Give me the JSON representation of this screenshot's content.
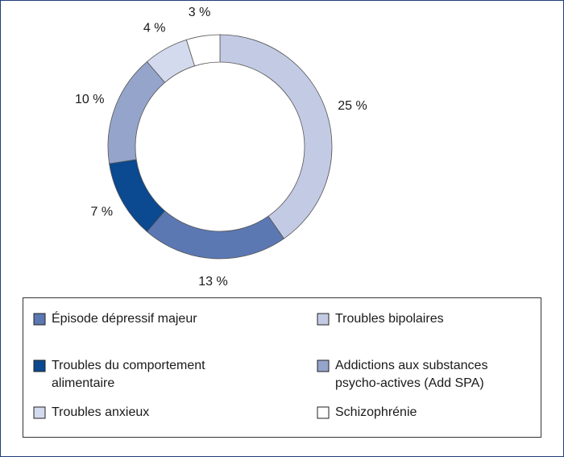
{
  "chart_data": {
    "type": "donut",
    "categories": [
      "Épisode dépressif majeur",
      "Troubles bipolaires",
      "Troubles du comportement alimentaire",
      "Addictions aux substances psycho-actives (Add SPA)",
      "Troubles anxieux",
      "Schizophrénie"
    ],
    "values": [
      13,
      25,
      7,
      10,
      4,
      3
    ],
    "value_labels": [
      "13 %",
      "25 %",
      "7 %",
      "10 %",
      "4 %",
      "3 %"
    ],
    "colors": [
      "#5b78b3",
      "#c3cae4",
      "#0b4990",
      "#94a4cb",
      "#d4daee",
      "#ffffff"
    ],
    "legend": "bottom"
  }
}
